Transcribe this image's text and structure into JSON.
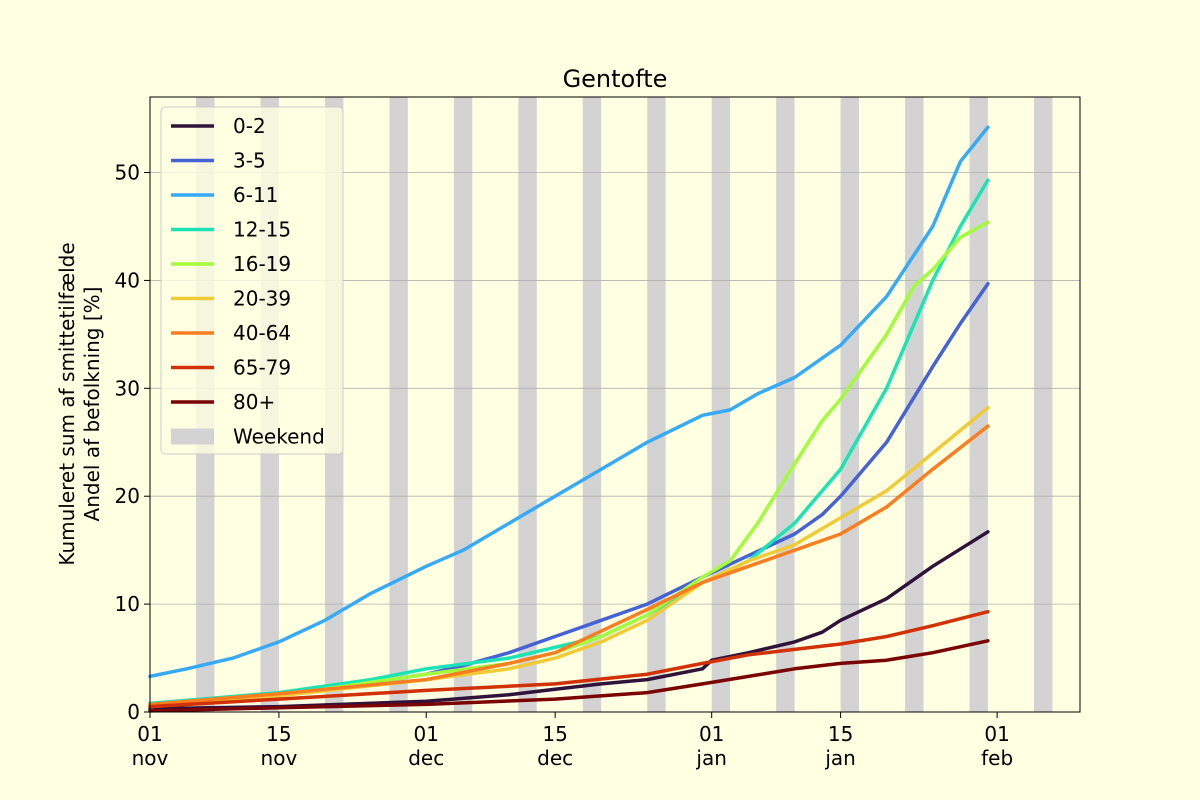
{
  "chart_data": {
    "type": "line",
    "title": "Gentofte",
    "ylabel": [
      "Kumuleret sum af smittetilfælde",
      "Andel af befolkning [%]"
    ],
    "xlabel": "",
    "ylim": [
      0,
      57
    ],
    "yticks": [
      0,
      10,
      20,
      30,
      40,
      50
    ],
    "grid": "horizontal",
    "legend_position": "top-left",
    "x_axis": {
      "start_date": "2021-11-01",
      "end_date": "2022-02-10",
      "ticks": [
        {
          "date": "2021-11-01",
          "day": "01",
          "month": "nov"
        },
        {
          "date": "2021-11-15",
          "day": "15",
          "month": "nov"
        },
        {
          "date": "2021-12-01",
          "day": "01",
          "month": "dec"
        },
        {
          "date": "2021-12-15",
          "day": "15",
          "month": "dec"
        },
        {
          "date": "2022-01-01",
          "day": "01",
          "month": "jan"
        },
        {
          "date": "2022-01-15",
          "day": "15",
          "month": "jan"
        },
        {
          "date": "2022-02-01",
          "day": "01",
          "month": "feb"
        }
      ]
    },
    "weekends": [
      {
        "start": "2021-11-06",
        "end": "2021-11-08"
      },
      {
        "start": "2021-11-13",
        "end": "2021-11-15"
      },
      {
        "start": "2021-11-20",
        "end": "2021-11-22"
      },
      {
        "start": "2021-11-27",
        "end": "2021-11-29"
      },
      {
        "start": "2021-12-04",
        "end": "2021-12-06"
      },
      {
        "start": "2021-12-11",
        "end": "2021-12-13"
      },
      {
        "start": "2021-12-18",
        "end": "2021-12-20"
      },
      {
        "start": "2021-12-25",
        "end": "2021-12-27"
      },
      {
        "start": "2022-01-01",
        "end": "2022-01-03"
      },
      {
        "start": "2022-01-08",
        "end": "2022-01-10"
      },
      {
        "start": "2022-01-15",
        "end": "2022-01-17"
      },
      {
        "start": "2022-01-22",
        "end": "2022-01-24"
      },
      {
        "start": "2022-01-29",
        "end": "2022-01-31"
      },
      {
        "start": "2022-02-05",
        "end": "2022-02-07"
      }
    ],
    "weekend_label": "Weekend",
    "weekend_color": "#d3d3d3",
    "series": [
      {
        "name": "0-2",
        "color": "#30123b",
        "points": [
          [
            "2021-11-01",
            0.3
          ],
          [
            "2021-11-15",
            0.5
          ],
          [
            "2021-12-01",
            1.0
          ],
          [
            "2021-12-10",
            1.6
          ],
          [
            "2021-12-15",
            2.1
          ],
          [
            "2021-12-20",
            2.6
          ],
          [
            "2021-12-25",
            3.0
          ],
          [
            "2021-12-31",
            4.0
          ],
          [
            "2022-01-01",
            4.8
          ],
          [
            "2022-01-05",
            5.5
          ],
          [
            "2022-01-10",
            6.5
          ],
          [
            "2022-01-13",
            7.4
          ],
          [
            "2022-01-15",
            8.5
          ],
          [
            "2022-01-20",
            10.5
          ],
          [
            "2022-01-25",
            13.5
          ],
          [
            "2022-01-31",
            16.7
          ]
        ]
      },
      {
        "name": "3-5",
        "color": "#4662d7",
        "points": [
          [
            "2021-11-01",
            0.5
          ],
          [
            "2021-11-15",
            1.5
          ],
          [
            "2021-12-01",
            3.5
          ],
          [
            "2021-12-05",
            4.3
          ],
          [
            "2021-12-10",
            5.5
          ],
          [
            "2021-12-15",
            7.0
          ],
          [
            "2021-12-20",
            8.5
          ],
          [
            "2021-12-25",
            10.0
          ],
          [
            "2021-12-31",
            12.5
          ],
          [
            "2022-01-05",
            14.5
          ],
          [
            "2022-01-10",
            16.5
          ],
          [
            "2022-01-13",
            18.3
          ],
          [
            "2022-01-15",
            20.0
          ],
          [
            "2022-01-20",
            25.0
          ],
          [
            "2022-01-25",
            32.0
          ],
          [
            "2022-01-28",
            36.0
          ],
          [
            "2022-01-31",
            39.7
          ]
        ]
      },
      {
        "name": "6-11",
        "color": "#36aaf9",
        "points": [
          [
            "2021-11-01",
            3.3
          ],
          [
            "2021-11-05",
            4.0
          ],
          [
            "2021-11-10",
            5.0
          ],
          [
            "2021-11-15",
            6.5
          ],
          [
            "2021-11-20",
            8.5
          ],
          [
            "2021-11-25",
            11.0
          ],
          [
            "2021-12-01",
            13.5
          ],
          [
            "2021-12-05",
            15.0
          ],
          [
            "2021-12-10",
            17.5
          ],
          [
            "2021-12-15",
            20.0
          ],
          [
            "2021-12-20",
            22.5
          ],
          [
            "2021-12-25",
            25.0
          ],
          [
            "2021-12-31",
            27.5
          ],
          [
            "2022-01-03",
            28.0
          ],
          [
            "2022-01-06",
            29.5
          ],
          [
            "2022-01-10",
            31.0
          ],
          [
            "2022-01-15",
            34.0
          ],
          [
            "2022-01-20",
            38.5
          ],
          [
            "2022-01-25",
            45.0
          ],
          [
            "2022-01-28",
            51.0
          ],
          [
            "2022-01-31",
            54.2
          ]
        ]
      },
      {
        "name": "12-15",
        "color": "#1ae4b6",
        "points": [
          [
            "2021-11-01",
            0.8
          ],
          [
            "2021-11-15",
            1.8
          ],
          [
            "2021-11-25",
            3.0
          ],
          [
            "2021-12-01",
            4.0
          ],
          [
            "2021-12-10",
            5.0
          ],
          [
            "2021-12-20",
            7.0
          ],
          [
            "2021-12-25",
            9.0
          ],
          [
            "2021-12-31",
            12.0
          ],
          [
            "2022-01-05",
            14.0
          ],
          [
            "2022-01-10",
            17.5
          ],
          [
            "2022-01-15",
            22.5
          ],
          [
            "2022-01-20",
            30.0
          ],
          [
            "2022-01-25",
            40.0
          ],
          [
            "2022-01-28",
            45.0
          ],
          [
            "2022-01-31",
            49.3
          ]
        ]
      },
      {
        "name": "16-19",
        "color": "#a2fc3c",
        "points": [
          [
            "2021-11-01",
            0.5
          ],
          [
            "2021-11-15",
            1.5
          ],
          [
            "2021-12-01",
            3.5
          ],
          [
            "2021-12-10",
            4.5
          ],
          [
            "2021-12-15",
            5.5
          ],
          [
            "2021-12-20",
            7.0
          ],
          [
            "2021-12-25",
            9.0
          ],
          [
            "2021-12-31",
            12.5
          ],
          [
            "2022-01-03",
            14.0
          ],
          [
            "2022-01-06",
            17.5
          ],
          [
            "2022-01-10",
            23.0
          ],
          [
            "2022-01-13",
            27.0
          ],
          [
            "2022-01-15",
            29.0
          ],
          [
            "2022-01-20",
            35.0
          ],
          [
            "2022-01-23",
            39.5
          ],
          [
            "2022-01-25",
            41.0
          ],
          [
            "2022-01-28",
            44.0
          ],
          [
            "2022-01-31",
            45.4
          ]
        ]
      },
      {
        "name": "20-39",
        "color": "#f0cb35",
        "points": [
          [
            "2021-11-01",
            0.5
          ],
          [
            "2021-11-15",
            1.5
          ],
          [
            "2021-12-01",
            3.0
          ],
          [
            "2021-12-10",
            4.0
          ],
          [
            "2021-12-15",
            5.0
          ],
          [
            "2021-12-20",
            6.5
          ],
          [
            "2021-12-25",
            8.5
          ],
          [
            "2021-12-31",
            12.0
          ],
          [
            "2022-01-05",
            14.0
          ],
          [
            "2022-01-10",
            15.5
          ],
          [
            "2022-01-15",
            18.0
          ],
          [
            "2022-01-20",
            20.5
          ],
          [
            "2022-01-25",
            24.0
          ],
          [
            "2022-01-31",
            28.2
          ]
        ]
      },
      {
        "name": "40-64",
        "color": "#fa7d20",
        "points": [
          [
            "2021-11-01",
            0.7
          ],
          [
            "2021-11-15",
            1.7
          ],
          [
            "2021-12-01",
            3.0
          ],
          [
            "2021-12-10",
            4.5
          ],
          [
            "2021-12-15",
            5.5
          ],
          [
            "2021-12-20",
            7.5
          ],
          [
            "2021-12-25",
            9.5
          ],
          [
            "2021-12-31",
            12.0
          ],
          [
            "2022-01-05",
            13.5
          ],
          [
            "2022-01-10",
            15.0
          ],
          [
            "2022-01-15",
            16.5
          ],
          [
            "2022-01-20",
            19.0
          ],
          [
            "2022-01-25",
            22.5
          ],
          [
            "2022-01-31",
            26.5
          ]
        ]
      },
      {
        "name": "65-79",
        "color": "#d23105",
        "points": [
          [
            "2021-11-01",
            0.5
          ],
          [
            "2021-11-15",
            1.2
          ],
          [
            "2021-12-01",
            2.0
          ],
          [
            "2021-12-15",
            2.6
          ],
          [
            "2021-12-25",
            3.5
          ],
          [
            "2021-12-31",
            4.5
          ],
          [
            "2022-01-05",
            5.3
          ],
          [
            "2022-01-10",
            5.8
          ],
          [
            "2022-01-15",
            6.3
          ],
          [
            "2022-01-20",
            7.0
          ],
          [
            "2022-01-25",
            8.0
          ],
          [
            "2022-01-31",
            9.3
          ]
        ]
      },
      {
        "name": "80+",
        "color": "#7a0403",
        "points": [
          [
            "2021-11-01",
            0.1
          ],
          [
            "2021-11-15",
            0.4
          ],
          [
            "2021-12-01",
            0.7
          ],
          [
            "2021-12-15",
            1.2
          ],
          [
            "2021-12-25",
            1.8
          ],
          [
            "2021-12-31",
            2.6
          ],
          [
            "2022-01-05",
            3.3
          ],
          [
            "2022-01-10",
            4.0
          ],
          [
            "2022-01-15",
            4.5
          ],
          [
            "2022-01-20",
            4.8
          ],
          [
            "2022-01-25",
            5.5
          ],
          [
            "2022-01-31",
            6.6
          ]
        ]
      }
    ]
  }
}
